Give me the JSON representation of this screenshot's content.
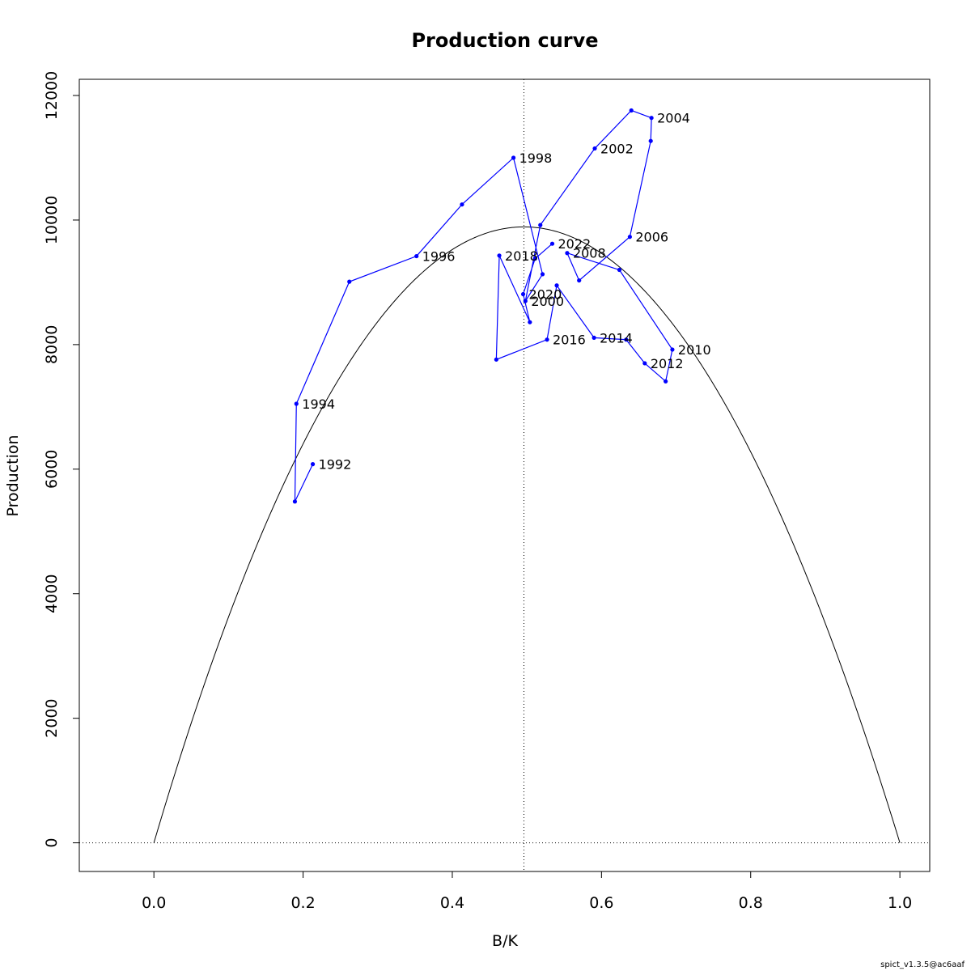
{
  "chart_data": {
    "type": "line",
    "title": "Production curve",
    "xlabel": "B/K",
    "ylabel": "Production",
    "xlim": [
      -0.1,
      1.04
    ],
    "ylim": [
      -460,
      12260
    ],
    "x_ticks": [
      0.0,
      0.2,
      0.4,
      0.6,
      0.8,
      1.0
    ],
    "x_tick_labels": [
      "0.0",
      "0.2",
      "0.4",
      "0.6",
      "0.8",
      "1.0"
    ],
    "y_ticks": [
      0,
      2000,
      4000,
      6000,
      8000,
      10000,
      12000
    ],
    "y_tick_labels": [
      "0",
      "2000",
      "4000",
      "6000",
      "8000",
      "10000",
      "12000"
    ],
    "grid": false,
    "legend": "none",
    "reference_lines": {
      "vertical_x": 0.496,
      "horizontal_y": 0
    },
    "production_curve": {
      "color": "#000000",
      "peak_x": 0.496,
      "peak_y": 9890,
      "x_range": [
        0.0,
        1.0
      ]
    },
    "trajectory": {
      "color": "#0000ff",
      "points": [
        {
          "x": 0.213,
          "y": 6080,
          "label": "1992"
        },
        {
          "x": 0.189,
          "y": 5480,
          "label": ""
        },
        {
          "x": 0.191,
          "y": 7050,
          "label": "1994"
        },
        {
          "x": 0.262,
          "y": 9010,
          "label": ""
        },
        {
          "x": 0.352,
          "y": 9420,
          "label": "1996"
        },
        {
          "x": 0.413,
          "y": 10250,
          "label": ""
        },
        {
          "x": 0.482,
          "y": 11000,
          "label": "1998"
        },
        {
          "x": 0.521,
          "y": 9130,
          "label": ""
        },
        {
          "x": 0.498,
          "y": 8700,
          "label": "2000"
        },
        {
          "x": 0.518,
          "y": 9920,
          "label": ""
        },
        {
          "x": 0.591,
          "y": 11150,
          "label": "2002"
        },
        {
          "x": 0.64,
          "y": 11760,
          "label": ""
        },
        {
          "x": 0.667,
          "y": 11640,
          "label": "2004"
        },
        {
          "x": 0.666,
          "y": 11270,
          "label": ""
        },
        {
          "x": 0.638,
          "y": 9730,
          "label": "2006"
        },
        {
          "x": 0.57,
          "y": 9030,
          "label": ""
        },
        {
          "x": 0.554,
          "y": 9470,
          "label": "2008"
        },
        {
          "x": 0.624,
          "y": 9200,
          "label": ""
        },
        {
          "x": 0.695,
          "y": 7920,
          "label": "2010"
        },
        {
          "x": 0.686,
          "y": 7410,
          "label": ""
        },
        {
          "x": 0.658,
          "y": 7700,
          "label": "2012"
        },
        {
          "x": 0.633,
          "y": 8080,
          "label": ""
        },
        {
          "x": 0.59,
          "y": 8110,
          "label": "2014"
        },
        {
          "x": 0.54,
          "y": 8950,
          "label": ""
        },
        {
          "x": 0.527,
          "y": 8080,
          "label": "2016"
        },
        {
          "x": 0.459,
          "y": 7760,
          "label": ""
        },
        {
          "x": 0.463,
          "y": 9430,
          "label": "2018"
        },
        {
          "x": 0.504,
          "y": 8360,
          "label": ""
        },
        {
          "x": 0.495,
          "y": 8810,
          "label": "2020"
        },
        {
          "x": 0.511,
          "y": 9380,
          "label": ""
        },
        {
          "x": 0.534,
          "y": 9620,
          "label": "2022"
        }
      ]
    }
  },
  "footer_text": "spict_v1.3.5@ac6aaf"
}
